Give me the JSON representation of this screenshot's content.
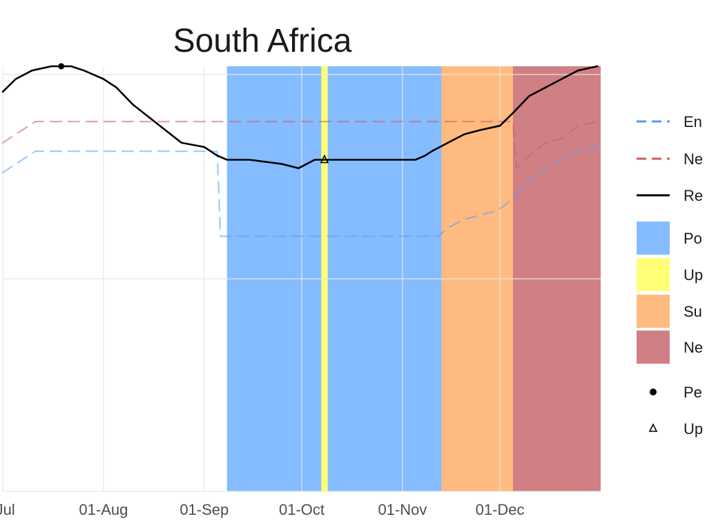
{
  "chart_data": {
    "type": "line",
    "title": "South Africa",
    "xlabel": "",
    "ylabel": "",
    "x_ticks": [
      "-Jul",
      "01-Aug",
      "01-Sep",
      "01-Oct",
      "01-Nov",
      "01-Dec"
    ],
    "grid": true,
    "legend_placement": "right",
    "x_start_label": "01-Jul",
    "x_end_label": "31-Dec",
    "y_range": [
      0,
      100
    ],
    "series": [
      {
        "name": "En",
        "style": "dashed",
        "color": "#4f9cf5",
        "points": [
          [
            "01-Jul",
            75
          ],
          [
            "11-Jul",
            80
          ],
          [
            "01-Aug",
            80
          ],
          [
            "01-Sep",
            80
          ],
          [
            "05-Sep",
            80
          ],
          [
            "06-Sep",
            60
          ],
          [
            "01-Oct",
            60
          ],
          [
            "01-Nov",
            60
          ],
          [
            "12-Nov",
            60
          ],
          [
            "15-Nov",
            62
          ],
          [
            "20-Nov",
            64
          ],
          [
            "30-Nov",
            66
          ],
          [
            "02-Dec",
            67
          ],
          [
            "05-Dec",
            69
          ],
          [
            "10-Dec",
            73
          ],
          [
            "15-Dec",
            76
          ],
          [
            "20-Dec",
            78
          ],
          [
            "25-Dec",
            80
          ],
          [
            "31-Dec",
            81
          ]
        ]
      },
      {
        "name": "Ne",
        "style": "dashed",
        "color": "#cd5c5c",
        "points": [
          [
            "01-Jul",
            82
          ],
          [
            "11-Jul",
            87
          ],
          [
            "01-Aug",
            87
          ],
          [
            "01-Sep",
            87
          ],
          [
            "01-Oct",
            87
          ],
          [
            "01-Nov",
            87
          ],
          [
            "01-Dec",
            87
          ],
          [
            "05-Dec",
            87
          ],
          [
            "06-Dec",
            76
          ],
          [
            "10-Dec",
            79
          ],
          [
            "15-Dec",
            82
          ],
          [
            "20-Dec",
            83
          ],
          [
            "25-Dec",
            86
          ],
          [
            "31-Dec",
            87
          ]
        ]
      },
      {
        "name": "Re",
        "style": "solid",
        "color": "#000000",
        "points": [
          [
            "01-Jul",
            94
          ],
          [
            "05-Jul",
            97
          ],
          [
            "10-Jul",
            99
          ],
          [
            "16-Jul",
            100
          ],
          [
            "22-Jul",
            100
          ],
          [
            "26-Jul",
            99
          ],
          [
            "01-Aug",
            97
          ],
          [
            "05-Aug",
            95
          ],
          [
            "10-Aug",
            91
          ],
          [
            "15-Aug",
            88
          ],
          [
            "20-Aug",
            85
          ],
          [
            "25-Aug",
            82
          ],
          [
            "01-Sep",
            81
          ],
          [
            "05-Sep",
            79
          ],
          [
            "08-Sep",
            78
          ],
          [
            "15-Sep",
            78
          ],
          [
            "20-Sep",
            77.5
          ],
          [
            "25-Sep",
            77
          ],
          [
            "30-Sep",
            76
          ],
          [
            "05-Oct",
            78
          ],
          [
            "10-Oct",
            78
          ],
          [
            "15-Oct",
            78
          ],
          [
            "20-Oct",
            78
          ],
          [
            "25-Oct",
            78
          ],
          [
            "01-Nov",
            78
          ],
          [
            "05-Nov",
            78
          ],
          [
            "08-Nov",
            79
          ],
          [
            "10-Nov",
            80
          ],
          [
            "15-Nov",
            82
          ],
          [
            "20-Nov",
            84
          ],
          [
            "25-Nov",
            85
          ],
          [
            "01-Dec",
            86
          ],
          [
            "05-Dec",
            89
          ],
          [
            "10-Dec",
            93
          ],
          [
            "15-Dec",
            95
          ],
          [
            "20-Dec",
            97
          ],
          [
            "25-Dec",
            99
          ],
          [
            "31-Dec",
            100
          ]
        ]
      }
    ],
    "bands": [
      {
        "name": "Po",
        "color": "#85bcff",
        "from": "08-Sep",
        "to": "07-Oct"
      },
      {
        "name": "Up",
        "color": "#ffff77",
        "from": "07-Oct",
        "to": "08-Oct"
      },
      {
        "name": "Po",
        "color": "#85bcff",
        "from": "09-Oct",
        "to": "13-Nov"
      },
      {
        "name": "Su",
        "color": "#ffbb7f",
        "from": "13-Nov",
        "to": "05-Dec"
      },
      {
        "name": "Ne",
        "color": "#d08085",
        "from": "05-Dec",
        "to": "31-Dec"
      }
    ],
    "markers": [
      {
        "name": "Pe",
        "shape": "dot",
        "at": "19-Jul",
        "value": 100
      },
      {
        "name": "Up",
        "shape": "triangle",
        "at": "08-Oct",
        "value": 78
      }
    ],
    "legend": [
      {
        "label": "En",
        "kind": "dash",
        "color": "#4f9cf5"
      },
      {
        "label": "Ne",
        "kind": "dash",
        "color": "#cd5c5c"
      },
      {
        "label": "Re",
        "kind": "line",
        "color": "#000000"
      },
      {
        "label": "Po",
        "kind": "box",
        "color": "#85bcff"
      },
      {
        "label": "Up",
        "kind": "box",
        "color": "#ffff77"
      },
      {
        "label": "Su",
        "kind": "box",
        "color": "#ffbb7f"
      },
      {
        "label": "Ne",
        "kind": "box",
        "color": "#d08085"
      },
      {
        "label": "Pe",
        "kind": "dot",
        "color": "#000000"
      },
      {
        "label": "Up",
        "kind": "triangle",
        "color": "#000000"
      }
    ]
  }
}
